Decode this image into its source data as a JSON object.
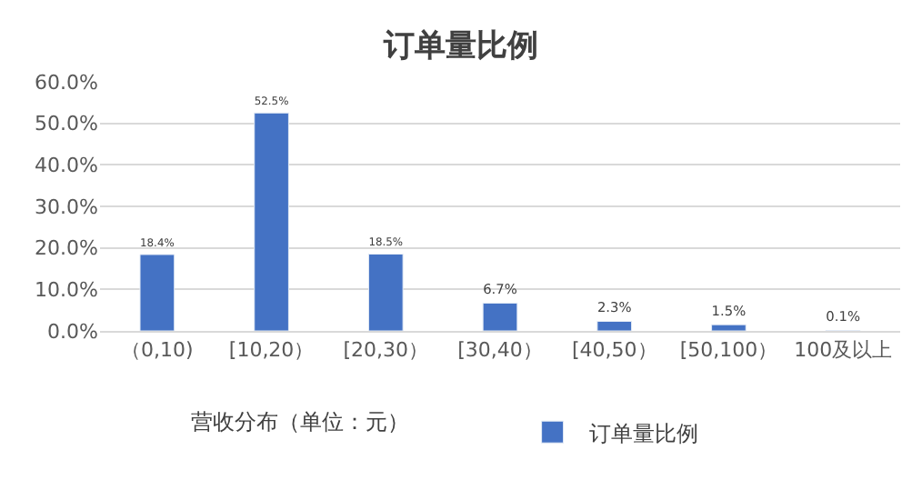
{
  "chart_data": {
    "type": "bar",
    "title": "订单量比例",
    "xlabel": "营收分布（单位：元）",
    "categories": [
      "（0,10)",
      "[10,20）",
      "[20,30）",
      "[30,40）",
      "[40,50）",
      "[50,100）",
      "100及以上"
    ],
    "series": [
      {
        "name": "订单量比例",
        "color": "#4472c4",
        "values": [
          18.4,
          52.5,
          18.5,
          6.7,
          2.3,
          1.5,
          0.1
        ],
        "value_labels": [
          "18.4%",
          "52.5%",
          "18.5%",
          "6.7%",
          "2.3%",
          "1.5%",
          "0.1%"
        ]
      }
    ],
    "ylim": [
      0,
      60
    ],
    "yticks": [
      {
        "value": 0,
        "label": "0.0%"
      },
      {
        "value": 10,
        "label": "10.0%"
      },
      {
        "value": 20,
        "label": "20.0%"
      },
      {
        "value": 30,
        "label": "30.0%"
      },
      {
        "value": 40,
        "label": "40.0%"
      },
      {
        "value": 50,
        "label": "50.0%"
      },
      {
        "value": 60,
        "label": "60.0%"
      }
    ],
    "grid": "y",
    "legend": "bottom"
  }
}
